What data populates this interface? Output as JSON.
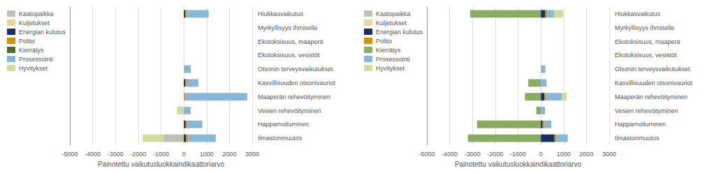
{
  "chart_data": [
    {
      "type": "bar",
      "orientation": "horizontal",
      "stacked": true,
      "categories": [
        "Hiukkasvaikutus",
        "Myrkyllisyys ihmiselle",
        "Ekotoksisuus, maaperä",
        "Ekotoksisuus, vesistöt",
        "Otsonin terveysvaikutukset",
        "Kasvillisuuden otsonivauriot",
        "Maaperän rehevöityminen",
        "Vesien rehevöityminen",
        "Happamoituminen",
        "Ilmastonmuutos"
      ],
      "series": [
        {
          "name": "Kaatopaikka",
          "color": "#c0c0b8",
          "values": [
            0,
            0,
            0,
            0,
            0,
            0,
            0,
            0,
            0,
            -900
          ]
        },
        {
          "name": "Kuljetukset",
          "color": "#e8d8a0",
          "values": [
            0,
            0,
            0,
            0,
            0,
            0,
            0,
            0,
            0,
            0
          ]
        },
        {
          "name": "Energian kulutus",
          "color": "#1a3060",
          "values": [
            60,
            0,
            0,
            0,
            0,
            60,
            0,
            0,
            80,
            100
          ]
        },
        {
          "name": "Poltto",
          "color": "#d4920a",
          "values": [
            80,
            0,
            0,
            0,
            0,
            60,
            80,
            0,
            80,
            100
          ]
        },
        {
          "name": "Kierrätys",
          "color": "#4a6e28",
          "values": [
            0,
            0,
            0,
            0,
            0,
            0,
            0,
            0,
            0,
            0
          ]
        },
        {
          "name": "Prosessointi",
          "color": "#88b8d8",
          "values": [
            950,
            0,
            0,
            0,
            300,
            520,
            2700,
            300,
            650,
            1200
          ]
        },
        {
          "name": "Hyvitykset",
          "color": "#d0dc98",
          "values": [
            0,
            0,
            0,
            0,
            0,
            0,
            0,
            -300,
            0,
            -900
          ]
        }
      ],
      "xlabel": "Painotettu vaikutusluokkaindikaattoriarvo",
      "xlim": [
        -5000,
        3000
      ],
      "xticks": [
        -5000,
        -4000,
        -3000,
        -2000,
        -1000,
        0,
        1000,
        2000,
        3000
      ],
      "grid": true,
      "legend": "upper left"
    },
    {
      "type": "bar",
      "orientation": "horizontal",
      "stacked": true,
      "categories": [
        "Hiukkasvaikutus",
        "Myrkyllisyys ihmiselle",
        "Ekotoksisuus, maaperä",
        "Ekotoksisuus, vesistöt",
        "Otsonin terveysvaikutukset",
        "Kasvillisuuden otsonivauriot",
        "Maaperän rehevöityminen",
        "Vesien rehevöityminen",
        "Happamoituminen",
        "Ilmastonmuutos"
      ],
      "series": [
        {
          "name": "Kaatopaikka",
          "color": "#c0c0b8",
          "values": [
            0,
            0,
            0,
            0,
            0,
            0,
            0,
            0,
            0,
            0
          ]
        },
        {
          "name": "Kuljetukset",
          "color": "#e8d8a0",
          "values": [
            0,
            0,
            0,
            0,
            0,
            0,
            0,
            0,
            0,
            0
          ]
        },
        {
          "name": "Energian kulutus",
          "color": "#1a3060",
          "values": [
            200,
            0,
            0,
            0,
            0,
            0,
            150,
            0,
            80,
            600
          ]
        },
        {
          "name": "Poltto",
          "color": "#d4920a",
          "values": [
            80,
            0,
            0,
            0,
            0,
            0,
            80,
            0,
            80,
            80
          ]
        },
        {
          "name": "Kierrätys",
          "color": "#8aac60",
          "values": [
            -3100,
            0,
            0,
            0,
            0,
            -550,
            -700,
            -200,
            -2800,
            -3200
          ]
        },
        {
          "name": "Prosessointi",
          "color": "#88b8d8",
          "values": [
            300,
            0,
            0,
            0,
            200,
            250,
            700,
            180,
            300,
            500
          ]
        },
        {
          "name": "Hyvitykset",
          "color": "#d0dc98",
          "values": [
            400,
            0,
            0,
            0,
            0,
            0,
            200,
            0,
            0,
            0
          ]
        }
      ],
      "xlabel": "Painotettu vaikutusluokkaindikaattoriarvo",
      "xlim": [
        -5000,
        3000
      ],
      "xticks": [
        -5000,
        -4000,
        -3000,
        -2000,
        -1000,
        0,
        1000,
        2000,
        3000
      ],
      "grid": true,
      "legend": "upper left"
    }
  ]
}
